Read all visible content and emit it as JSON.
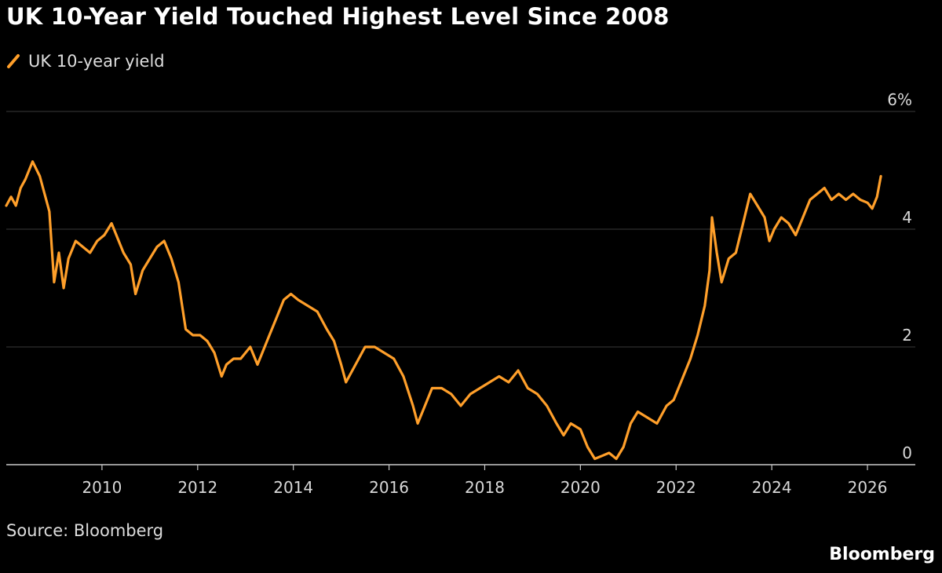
{
  "title": "UK 10-Year Yield Touched Highest Level Since 2008",
  "source": "Source: Bloomberg",
  "brand": "Bloomberg",
  "colors": {
    "line": "#ff9f2a",
    "grid": "#3a3a3a",
    "axis": "#c8c8c8",
    "background": "#000000"
  },
  "chart_data": {
    "type": "line",
    "title": "UK 10-Year Yield Touched Highest Level Since 2008",
    "xlabel": "",
    "ylabel": "",
    "legend": "top-left",
    "grid": true,
    "xlim": [
      2008.0,
      2027.0
    ],
    "ylim": [
      0,
      6
    ],
    "y_ticks": [
      0,
      2,
      4,
      6
    ],
    "y_tick_labels": [
      "0",
      "2",
      "4",
      "6%"
    ],
    "x_ticks": [
      2010,
      2012,
      2014,
      2016,
      2018,
      2020,
      2022,
      2024,
      2026
    ],
    "x_tick_labels": [
      "2010",
      "2012",
      "2014",
      "2016",
      "2018",
      "2020",
      "2022",
      "2024",
      "2026"
    ],
    "series": [
      {
        "name": "UK 10-year yield",
        "x": [
          2008.0,
          2008.1,
          2008.2,
          2008.3,
          2008.4,
          2008.55,
          2008.7,
          2008.8,
          2008.9,
          2009.0,
          2009.1,
          2009.2,
          2009.3,
          2009.45,
          2009.6,
          2009.75,
          2009.9,
          2010.05,
          2010.2,
          2010.3,
          2010.45,
          2010.6,
          2010.7,
          2010.85,
          2011.0,
          2011.15,
          2011.3,
          2011.45,
          2011.6,
          2011.75,
          2011.9,
          2012.05,
          2012.2,
          2012.35,
          2012.5,
          2012.6,
          2012.75,
          2012.9,
          2013.1,
          2013.25,
          2013.35,
          2013.5,
          2013.65,
          2013.8,
          2013.95,
          2014.1,
          2014.3,
          2014.5,
          2014.7,
          2014.85,
          2015.0,
          2015.1,
          2015.3,
          2015.5,
          2015.7,
          2015.9,
          2016.1,
          2016.3,
          2016.5,
          2016.6,
          2016.75,
          2016.9,
          2017.1,
          2017.3,
          2017.5,
          2017.7,
          2017.9,
          2018.1,
          2018.3,
          2018.5,
          2018.7,
          2018.9,
          2019.1,
          2019.3,
          2019.5,
          2019.65,
          2019.8,
          2020.0,
          2020.15,
          2020.3,
          2020.45,
          2020.6,
          2020.75,
          2020.9,
          2021.05,
          2021.2,
          2021.4,
          2021.6,
          2021.8,
          2021.95,
          2022.1,
          2022.3,
          2022.45,
          2022.6,
          2022.7,
          2022.75,
          2022.85,
          2022.95,
          2023.1,
          2023.25,
          2023.4,
          2023.55,
          2023.7,
          2023.85,
          2023.95,
          2024.05,
          2024.2,
          2024.35,
          2024.5,
          2024.65,
          2024.8,
          2024.95,
          2025.1,
          2025.25,
          2025.4,
          2025.55,
          2025.7,
          2025.85,
          2026.0,
          2026.1,
          2026.2,
          2026.28
        ],
        "values": [
          4.4,
          4.55,
          4.4,
          4.7,
          4.85,
          5.15,
          4.9,
          4.6,
          4.3,
          3.1,
          3.6,
          3.0,
          3.5,
          3.8,
          3.7,
          3.6,
          3.8,
          3.9,
          4.1,
          3.9,
          3.6,
          3.4,
          2.9,
          3.3,
          3.5,
          3.7,
          3.8,
          3.5,
          3.1,
          2.3,
          2.2,
          2.2,
          2.1,
          1.9,
          1.5,
          1.7,
          1.8,
          1.8,
          2.0,
          1.7,
          1.9,
          2.2,
          2.5,
          2.8,
          2.9,
          2.8,
          2.7,
          2.6,
          2.3,
          2.1,
          1.7,
          1.4,
          1.7,
          2.0,
          2.0,
          1.9,
          1.8,
          1.5,
          1.0,
          0.7,
          1.0,
          1.3,
          1.3,
          1.2,
          1.0,
          1.2,
          1.3,
          1.4,
          1.5,
          1.4,
          1.6,
          1.3,
          1.2,
          1.0,
          0.7,
          0.5,
          0.7,
          0.6,
          0.3,
          0.1,
          0.15,
          0.2,
          0.1,
          0.3,
          0.7,
          0.9,
          0.8,
          0.7,
          1.0,
          1.1,
          1.4,
          1.8,
          2.2,
          2.7,
          3.3,
          4.2,
          3.6,
          3.1,
          3.5,
          3.6,
          4.1,
          4.6,
          4.4,
          4.2,
          3.8,
          4.0,
          4.2,
          4.1,
          3.9,
          4.2,
          4.5,
          4.6,
          4.7,
          4.5,
          4.6,
          4.5,
          4.6,
          4.5,
          4.45,
          4.35,
          4.55,
          4.9
        ]
      }
    ]
  }
}
